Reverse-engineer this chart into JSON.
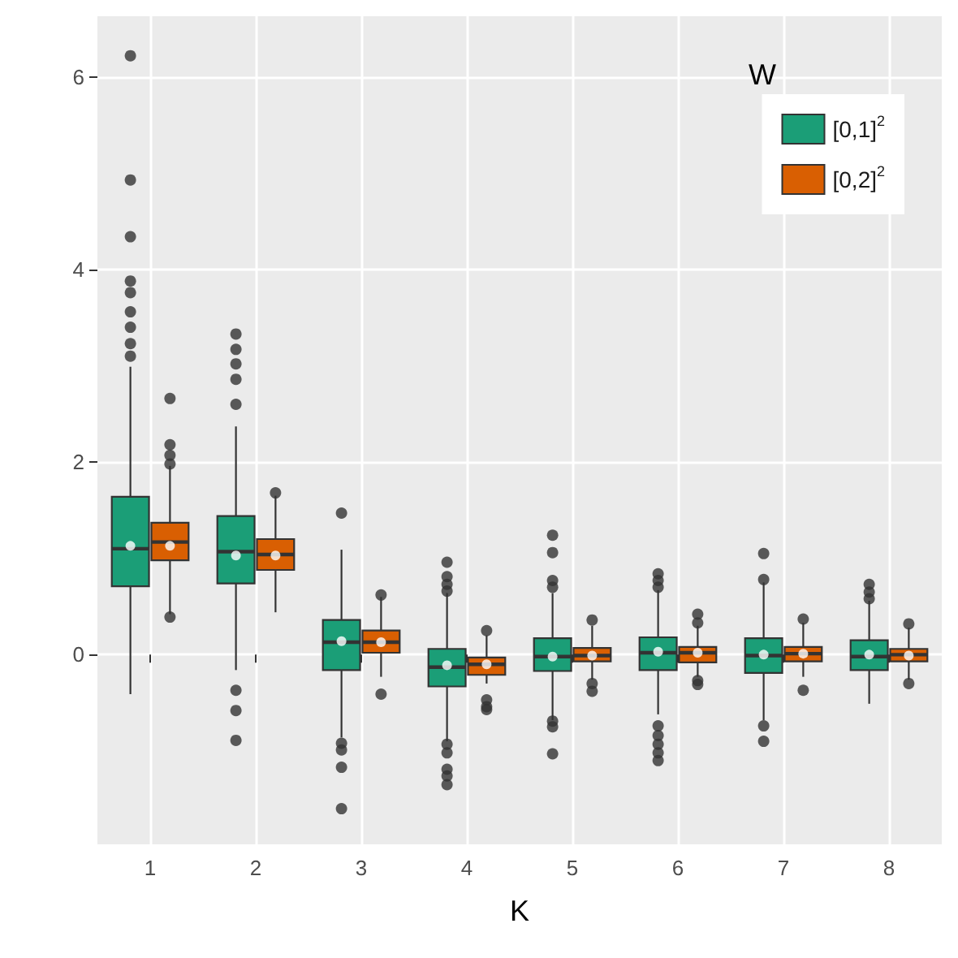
{
  "chart_data": {
    "type": "box",
    "xlabel": "K",
    "legend_title": "W",
    "categories": [
      "1",
      "2",
      "3",
      "4",
      "5",
      "6",
      "7",
      "8"
    ],
    "ylim": [
      -1.97,
      6.63
    ],
    "yticks": [
      0,
      2,
      4,
      6
    ],
    "grid": true,
    "legend": "top right",
    "series": [
      {
        "name": "[0,1]$^{2}$",
        "color": "#1b9e77",
        "boxes": [
          {
            "low": -0.41,
            "q1": 0.71,
            "median": 1.1,
            "q3": 1.64,
            "high": 2.99,
            "mean": 1.13,
            "outliers": [
              6.22,
              4.93,
              4.34,
              3.88,
              3.76,
              3.56,
              3.4,
              3.23,
              3.1
            ]
          },
          {
            "low": -0.16,
            "q1": 0.74,
            "median": 1.07,
            "q3": 1.44,
            "high": 2.37,
            "mean": 1.03,
            "outliers": [
              3.33,
              3.17,
              3.02,
              2.86,
              2.6,
              -0.37,
              -0.58,
              -0.89
            ]
          },
          {
            "low": -0.86,
            "q1": -0.16,
            "median": 0.13,
            "q3": 0.36,
            "high": 1.09,
            "mean": 0.14,
            "outliers": [
              1.47,
              -0.92,
              -0.99,
              -1.17,
              -1.6
            ]
          },
          {
            "low": -0.9,
            "q1": -0.33,
            "median": -0.13,
            "q3": 0.06,
            "high": 0.64,
            "mean": -0.11,
            "outliers": [
              0.96,
              0.81,
              0.73,
              0.66,
              -0.93,
              -1.02,
              -1.19,
              -1.26,
              -1.35
            ]
          },
          {
            "low": -0.68,
            "q1": -0.17,
            "median": -0.02,
            "q3": 0.17,
            "high": 0.64,
            "mean": -0.02,
            "outliers": [
              1.24,
              1.06,
              0.77,
              0.7,
              -0.69,
              -0.75,
              -1.03
            ]
          },
          {
            "low": -0.62,
            "q1": -0.16,
            "median": 0.02,
            "q3": 0.18,
            "high": 0.67,
            "mean": 0.03,
            "outliers": [
              0.84,
              0.77,
              0.7,
              -0.74,
              -0.84,
              -0.93,
              -1.02,
              -1.1
            ]
          },
          {
            "low": -0.68,
            "q1": -0.19,
            "median": -0.01,
            "q3": 0.17,
            "high": 0.75,
            "mean": 0.0,
            "outliers": [
              1.05,
              0.78,
              -0.74,
              -0.9
            ]
          },
          {
            "low": -0.51,
            "q1": -0.16,
            "median": -0.02,
            "q3": 0.15,
            "high": 0.56,
            "mean": 0.0,
            "outliers": [
              0.73,
              0.65,
              0.58
            ]
          }
        ]
      },
      {
        "name": "[0,2]$^{2}$",
        "color": "#d95f02",
        "boxes": [
          {
            "low": 0.42,
            "q1": 0.98,
            "median": 1.17,
            "q3": 1.37,
            "high": 1.96,
            "mean": 1.13,
            "outliers": [
              2.66,
              2.18,
              2.07,
              1.98,
              0.39
            ]
          },
          {
            "low": 0.44,
            "q1": 0.88,
            "median": 1.04,
            "q3": 1.2,
            "high": 1.65,
            "mean": 1.03,
            "outliers": [
              1.68
            ]
          },
          {
            "low": -0.23,
            "q1": 0.02,
            "median": 0.13,
            "q3": 0.25,
            "high": 0.6,
            "mean": 0.13,
            "outliers": [
              0.62,
              -0.41
            ]
          },
          {
            "low": -0.3,
            "q1": -0.21,
            "median": -0.1,
            "q3": -0.03,
            "high": 0.2,
            "mean": -0.1,
            "outliers": [
              0.25,
              -0.47,
              -0.54,
              -0.57
            ]
          },
          {
            "low": -0.26,
            "q1": -0.07,
            "median": -0.01,
            "q3": 0.07,
            "high": 0.3,
            "mean": -0.01,
            "outliers": [
              0.36,
              -0.3,
              -0.38
            ]
          },
          {
            "low": -0.23,
            "q1": -0.08,
            "median": 0.02,
            "q3": 0.08,
            "high": 0.3,
            "mean": 0.02,
            "outliers": [
              0.42,
              0.33,
              -0.27,
              -0.31
            ]
          },
          {
            "low": -0.23,
            "q1": -0.07,
            "median": 0.01,
            "q3": 0.08,
            "high": 0.33,
            "mean": 0.01,
            "outliers": [
              0.37,
              -0.37
            ]
          },
          {
            "low": -0.26,
            "q1": -0.07,
            "median": 0.0,
            "q3": 0.06,
            "high": 0.28,
            "mean": -0.01,
            "outliers": [
              0.32,
              -0.3
            ]
          }
        ]
      }
    ]
  }
}
